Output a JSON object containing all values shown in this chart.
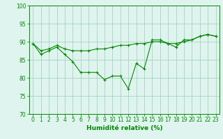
{
  "x": [
    0,
    1,
    2,
    3,
    4,
    5,
    6,
    7,
    8,
    9,
    10,
    11,
    12,
    13,
    14,
    15,
    16,
    17,
    18,
    19,
    20,
    21,
    22,
    23
  ],
  "line1": [
    89.5,
    86.5,
    87.5,
    88.5,
    86.5,
    84.5,
    81.5,
    81.5,
    81.5,
    79.5,
    80.5,
    80.5,
    77.0,
    84.0,
    82.5,
    90.5,
    90.5,
    89.5,
    88.5,
    90.5,
    90.5,
    91.5,
    92.0,
    91.5
  ],
  "line2": [
    89.5,
    87.5,
    88.0,
    89.0,
    88.0,
    87.5,
    87.5,
    87.5,
    88.0,
    88.0,
    88.5,
    89.0,
    89.0,
    89.5,
    89.5,
    90.0,
    90.0,
    89.5,
    89.5,
    90.0,
    90.5,
    91.5,
    92.0,
    91.5
  ],
  "bg_color": "#dff4ee",
  "grid_color": "#99ccbb",
  "line_color": "#008800",
  "xlabel": "Humidité relative (%)",
  "xlim": [
    -0.5,
    23.5
  ],
  "ylim": [
    70,
    100
  ],
  "yticks": [
    70,
    75,
    80,
    85,
    90,
    95,
    100
  ],
  "xticks": [
    0,
    1,
    2,
    3,
    4,
    5,
    6,
    7,
    8,
    9,
    10,
    11,
    12,
    13,
    14,
    15,
    16,
    17,
    18,
    19,
    20,
    21,
    22,
    23
  ],
  "tick_fontsize": 5.5,
  "xlabel_fontsize": 6.5
}
